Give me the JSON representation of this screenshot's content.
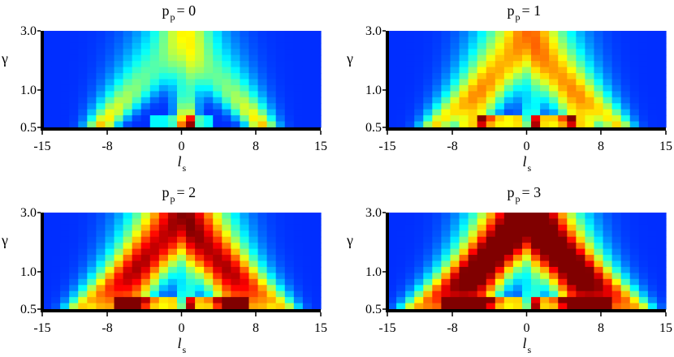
{
  "chart_data": [
    {
      "type": "heatmap",
      "title": "p = 0",
      "title_base": "p",
      "title_sub": "p",
      "title_value": "= 0",
      "xlabel": "l",
      "xlabel_sub": "s",
      "ylabel": "γ",
      "xlim": [
        -15,
        15
      ],
      "ylim_log": [
        0.5,
        3.0
      ],
      "x_ticks": [
        "-15",
        "-8",
        "0",
        "8",
        "15"
      ],
      "x_tick_values": [
        -15,
        -8,
        0,
        8,
        15
      ],
      "y_ticks": [
        "3.0",
        "1.0",
        "0.5"
      ],
      "y_tick_values": [
        3.0,
        1.0,
        0.5
      ],
      "colormap": "jet",
      "value_range": [
        0,
        1
      ],
      "p_order": 0
    },
    {
      "type": "heatmap",
      "title": "p = 1",
      "title_base": "p",
      "title_sub": "p",
      "title_value": "= 1",
      "xlabel": "l",
      "xlabel_sub": "s",
      "ylabel": "γ",
      "xlim": [
        -15,
        15
      ],
      "ylim_log": [
        0.5,
        3.0
      ],
      "x_ticks": [
        "-15",
        "-8",
        "0",
        "8",
        "15"
      ],
      "x_tick_values": [
        -15,
        -8,
        0,
        8,
        15
      ],
      "y_ticks": [
        "3.0",
        "1.0",
        "0.5"
      ],
      "y_tick_values": [
        3.0,
        1.0,
        0.5
      ],
      "colormap": "jet",
      "value_range": [
        0,
        1
      ],
      "p_order": 1
    },
    {
      "type": "heatmap",
      "title": "p = 2",
      "title_base": "p",
      "title_sub": "p",
      "title_value": "= 2",
      "xlabel": "l",
      "xlabel_sub": "s",
      "ylabel": "γ",
      "xlim": [
        -15,
        15
      ],
      "ylim_log": [
        0.5,
        3.0
      ],
      "x_ticks": [
        "-15",
        "-8",
        "0",
        "8",
        "15"
      ],
      "x_tick_values": [
        -15,
        -8,
        0,
        8,
        15
      ],
      "y_ticks": [
        "3.0",
        "1.0",
        "0.5"
      ],
      "y_tick_values": [
        3.0,
        1.0,
        0.5
      ],
      "colormap": "jet",
      "value_range": [
        0,
        1
      ],
      "p_order": 2
    },
    {
      "type": "heatmap",
      "title": "p = 3",
      "title_base": "p",
      "title_sub": "p",
      "title_value": "= 3",
      "xlabel": "l",
      "xlabel_sub": "s",
      "ylabel": "γ",
      "xlim": [
        -15,
        15
      ],
      "ylim_log": [
        0.5,
        3.0
      ],
      "x_ticks": [
        "-15",
        "-8",
        "0",
        "8",
        "15"
      ],
      "x_tick_values": [
        -15,
        -8,
        0,
        8,
        15
      ],
      "y_ticks": [
        "3.0",
        "1.0",
        "0.5"
      ],
      "y_tick_values": [
        3.0,
        1.0,
        0.5
      ],
      "colormap": "jet",
      "value_range": [
        0,
        1
      ],
      "p_order": 3
    }
  ]
}
